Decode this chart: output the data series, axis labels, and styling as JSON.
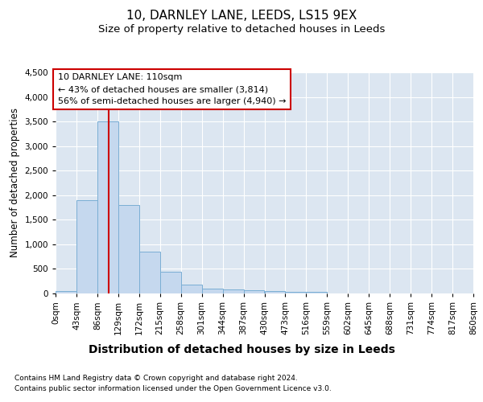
{
  "title": "10, DARNLEY LANE, LEEDS, LS15 9EX",
  "subtitle": "Size of property relative to detached houses in Leeds",
  "xlabel": "Distribution of detached houses by size in Leeds",
  "ylabel": "Number of detached properties",
  "footnote1": "Contains HM Land Registry data © Crown copyright and database right 2024.",
  "footnote2": "Contains public sector information licensed under the Open Government Licence v3.0.",
  "property_label": "10 DARNLEY LANE: 110sqm",
  "annotation_line1": "← 43% of detached houses are smaller (3,814)",
  "annotation_line2": "56% of semi-detached houses are larger (4,940) →",
  "property_size_sqm": 110,
  "bin_edges": [
    0,
    43,
    86,
    129,
    172,
    215,
    258,
    301,
    344,
    387,
    430,
    473,
    516,
    559,
    602,
    645,
    688,
    731,
    774,
    817,
    860
  ],
  "bar_heights": [
    50,
    1900,
    3500,
    1800,
    850,
    450,
    175,
    100,
    80,
    60,
    50,
    40,
    30,
    0,
    0,
    0,
    0,
    0,
    0,
    0
  ],
  "bar_color": "#c5d8ee",
  "bar_edge_color": "#7aaed4",
  "vline_color": "#cc0000",
  "vline_x": 110,
  "annotation_box_edgecolor": "#cc0000",
  "ylim": [
    0,
    4500
  ],
  "yticks": [
    0,
    500,
    1000,
    1500,
    2000,
    2500,
    3000,
    3500,
    4000,
    4500
  ],
  "bg_color": "#dce6f1",
  "grid_color": "#ffffff",
  "title_fontsize": 11,
  "subtitle_fontsize": 9.5,
  "xlabel_fontsize": 10,
  "ylabel_fontsize": 8.5,
  "tick_fontsize": 7.5,
  "annotation_fontsize": 8
}
